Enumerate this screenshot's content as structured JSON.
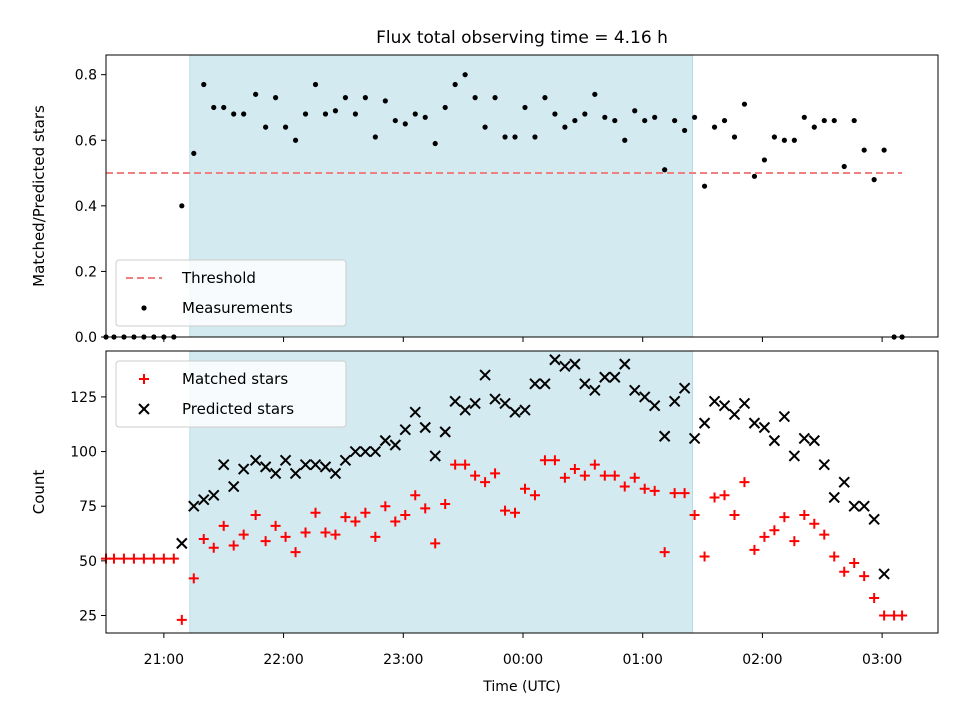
{
  "figure": {
    "title": "Flux total observing time = 4.16 h",
    "xlabel": "Time (UTC)",
    "x_tick_labels": [
      "21:00",
      "22:00",
      "23:00",
      "00:00",
      "01:00",
      "02:00",
      "03:00"
    ]
  },
  "colors": {
    "shade": "#d3eaf1",
    "threshold": "#f08080",
    "measurements": "#000000",
    "matched": "#ff0000",
    "predicted": "#000000"
  },
  "chart_data": [
    {
      "type": "scatter",
      "ylabel": "Matched/Predicted stars",
      "xlim": [
        "20:31",
        "03:28"
      ],
      "ylim": [
        0,
        0.86
      ],
      "y_ticks": [
        0.0,
        0.2,
        0.4,
        0.6,
        0.8
      ],
      "y_tick_labels": [
        "0.0",
        "0.2",
        "0.4",
        "0.6",
        "0.8"
      ],
      "shaded_region": {
        "x_start": "21:13",
        "x_end": "01:25"
      },
      "threshold": {
        "name": "Threshold",
        "value": 0.5,
        "x_start": "20:31",
        "x_end": "03:10"
      },
      "legend": {
        "position": "lower-left",
        "entries": [
          {
            "label": "Threshold",
            "marker": "dashed-line"
          },
          {
            "label": "Measurements",
            "marker": "dot"
          }
        ]
      },
      "series": [
        {
          "name": "Measurements",
          "x": [
            "20:31",
            "20:35",
            "20:40",
            "20:45",
            "20:50",
            "20:55",
            "21:00",
            "21:05",
            "21:09",
            "21:15",
            "21:20",
            "21:25",
            "21:30",
            "21:35",
            "21:40",
            "21:46",
            "21:51",
            "21:56",
            "22:01",
            "22:06",
            "22:11",
            "22:16",
            "22:21",
            "22:26",
            "22:31",
            "22:36",
            "22:41",
            "22:46",
            "22:51",
            "22:56",
            "23:01",
            "23:06",
            "23:11",
            "23:16",
            "23:21",
            "23:26",
            "23:31",
            "23:36",
            "23:41",
            "23:46",
            "23:51",
            "23:56",
            "00:01",
            "00:06",
            "00:11",
            "00:16",
            "00:21",
            "00:26",
            "00:31",
            "00:36",
            "00:41",
            "00:46",
            "00:51",
            "00:56",
            "01:01",
            "01:06",
            "01:11",
            "01:16",
            "01:21",
            "01:26",
            "01:31",
            "01:36",
            "01:41",
            "01:46",
            "01:51",
            "01:56",
            "02:01",
            "02:06",
            "02:11",
            "02:16",
            "02:21",
            "02:26",
            "02:31",
            "02:36",
            "02:41",
            "02:46",
            "02:51",
            "02:56",
            "03:01",
            "03:06",
            "03:10"
          ],
          "y": [
            0.0,
            0.0,
            0.0,
            0.0,
            0.0,
            0.0,
            0.0,
            0.0,
            0.4,
            0.56,
            0.77,
            0.7,
            0.7,
            0.68,
            0.68,
            0.74,
            0.64,
            0.73,
            0.64,
            0.6,
            0.68,
            0.77,
            0.68,
            0.69,
            0.73,
            0.68,
            0.73,
            0.61,
            0.72,
            0.66,
            0.65,
            0.68,
            0.67,
            0.59,
            0.7,
            0.77,
            0.8,
            0.73,
            0.64,
            0.73,
            0.61,
            0.61,
            0.7,
            0.61,
            0.73,
            0.68,
            0.64,
            0.66,
            0.68,
            0.74,
            0.67,
            0.66,
            0.6,
            0.69,
            0.66,
            0.67,
            0.51,
            0.66,
            0.63,
            0.67,
            0.46,
            0.64,
            0.66,
            0.61,
            0.71,
            0.49,
            0.54,
            0.61,
            0.6,
            0.6,
            0.67,
            0.64,
            0.66,
            0.66,
            0.52,
            0.66,
            0.57,
            0.48,
            0.57,
            0.0,
            0.0
          ]
        }
      ]
    },
    {
      "type": "scatter",
      "ylabel": "Count",
      "xlim": [
        "20:31",
        "03:28"
      ],
      "ylim": [
        17,
        146
      ],
      "y_ticks": [
        25,
        50,
        75,
        100,
        125
      ],
      "y_tick_labels": [
        "25",
        "50",
        "75",
        "100",
        "125"
      ],
      "shaded_region": {
        "x_start": "21:13",
        "x_end": "01:25"
      },
      "legend": {
        "position": "upper-left",
        "entries": [
          {
            "label": "Matched stars",
            "marker": "plus"
          },
          {
            "label": "Predicted stars",
            "marker": "x"
          }
        ]
      },
      "series": [
        {
          "name": "Matched stars",
          "x": [
            "20:31",
            "20:35",
            "20:40",
            "20:45",
            "20:50",
            "20:55",
            "21:00",
            "21:05",
            "21:09",
            "21:15",
            "21:20",
            "21:25",
            "21:30",
            "21:35",
            "21:40",
            "21:46",
            "21:51",
            "21:56",
            "22:01",
            "22:06",
            "22:11",
            "22:16",
            "22:21",
            "22:26",
            "22:31",
            "22:36",
            "22:41",
            "22:46",
            "22:51",
            "22:56",
            "23:01",
            "23:06",
            "23:11",
            "23:16",
            "23:21",
            "23:26",
            "23:31",
            "23:36",
            "23:41",
            "23:46",
            "23:51",
            "23:56",
            "00:01",
            "00:06",
            "00:11",
            "00:16",
            "00:21",
            "00:26",
            "00:31",
            "00:36",
            "00:41",
            "00:46",
            "00:51",
            "00:56",
            "01:01",
            "01:06",
            "01:11",
            "01:16",
            "01:21",
            "01:26",
            "01:31",
            "01:36",
            "01:41",
            "01:46",
            "01:51",
            "01:56",
            "02:01",
            "02:06",
            "02:11",
            "02:16",
            "02:21",
            "02:26",
            "02:31",
            "02:36",
            "02:41",
            "02:46",
            "02:51",
            "02:56",
            "03:01",
            "03:06",
            "03:10"
          ],
          "y": [
            51,
            51,
            51,
            51,
            51,
            51,
            51,
            51,
            23,
            42,
            60,
            56,
            66,
            57,
            62,
            71,
            59,
            66,
            61,
            54,
            63,
            72,
            63,
            62,
            70,
            68,
            72,
            61,
            75,
            68,
            71,
            80,
            74,
            58,
            76,
            94,
            94,
            89,
            86,
            90,
            73,
            72,
            83,
            80,
            96,
            96,
            88,
            92,
            89,
            94,
            89,
            89,
            84,
            88,
            83,
            82,
            54,
            81,
            81,
            71,
            52,
            79,
            80,
            71,
            86,
            55,
            61,
            64,
            70,
            59,
            71,
            67,
            62,
            52,
            45,
            49,
            43,
            33,
            25,
            25,
            25
          ]
        },
        {
          "name": "Predicted stars",
          "x": [
            "21:09",
            "21:15",
            "21:20",
            "21:25",
            "21:30",
            "21:35",
            "21:40",
            "21:46",
            "21:51",
            "21:56",
            "22:01",
            "22:06",
            "22:11",
            "22:16",
            "22:21",
            "22:26",
            "22:31",
            "22:36",
            "22:41",
            "22:46",
            "22:51",
            "22:56",
            "23:01",
            "23:06",
            "23:11",
            "23:16",
            "23:21",
            "23:26",
            "23:31",
            "23:36",
            "23:41",
            "23:46",
            "23:51",
            "23:56",
            "00:01",
            "00:06",
            "00:11",
            "00:16",
            "00:21",
            "00:26",
            "00:31",
            "00:36",
            "00:41",
            "00:46",
            "00:51",
            "00:56",
            "01:01",
            "01:06",
            "01:11",
            "01:16",
            "01:21",
            "01:26",
            "01:31",
            "01:36",
            "01:41",
            "01:46",
            "01:51",
            "01:56",
            "02:01",
            "02:06",
            "02:11",
            "02:16",
            "02:21",
            "02:26",
            "02:31",
            "02:36",
            "02:41",
            "02:46",
            "02:51",
            "02:56",
            "03:01"
          ],
          "y": [
            58,
            75,
            78,
            80,
            94,
            84,
            92,
            96,
            93,
            90,
            96,
            90,
            94,
            94,
            93,
            90,
            96,
            100,
            100,
            100,
            105,
            103,
            110,
            118,
            111,
            98,
            109,
            123,
            119,
            122,
            135,
            124,
            122,
            118,
            119,
            131,
            131,
            142,
            139,
            140,
            131,
            128,
            134,
            134,
            140,
            128,
            125,
            121,
            107,
            123,
            129,
            106,
            113,
            123,
            121,
            117,
            122,
            113,
            111,
            105,
            116,
            98,
            106,
            105,
            94,
            79,
            86,
            75,
            75,
            69,
            44
          ]
        }
      ]
    }
  ]
}
